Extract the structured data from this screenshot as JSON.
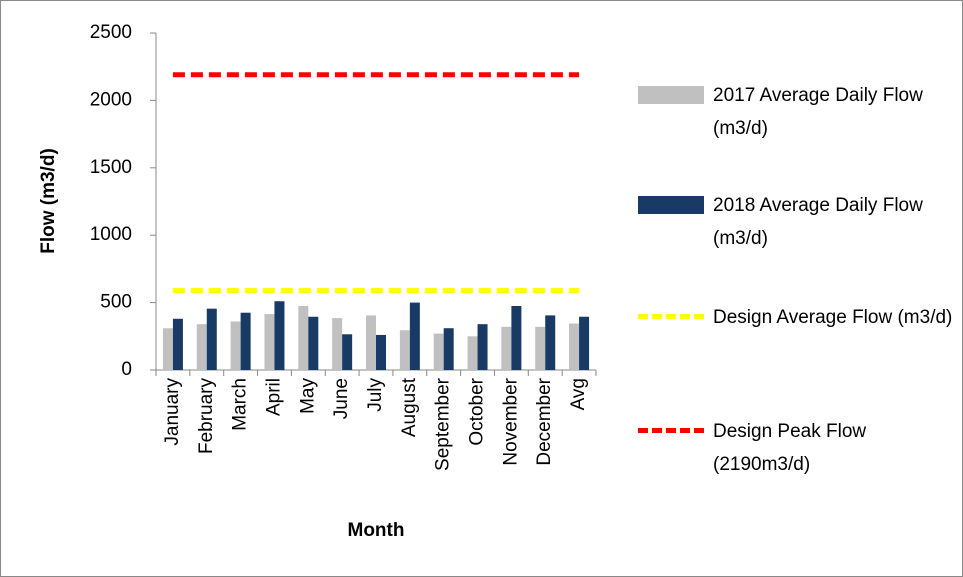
{
  "chart_data": {
    "type": "bar",
    "ylabel": "Flow (m3/d)",
    "xlabel": "Month",
    "categories": [
      "January",
      "February",
      "March",
      "April",
      "May",
      "June",
      "July",
      "August",
      "September",
      "October",
      "November",
      "December",
      "Avg"
    ],
    "series": [
      {
        "name": "2017 Average Daily Flow (m3/d)",
        "type": "bar",
        "color": "#c0c0c0",
        "values": [
          310,
          340,
          360,
          415,
          475,
          385,
          405,
          295,
          270,
          250,
          320,
          320,
          345
        ]
      },
      {
        "name": "2018 Average Daily Flow (m3/d)",
        "type": "bar",
        "color": "#1a3a66",
        "values": [
          380,
          455,
          425,
          510,
          395,
          265,
          260,
          500,
          310,
          340,
          475,
          405,
          395
        ]
      },
      {
        "name": "Design Average Flow (m3/d)",
        "type": "line",
        "dashed": true,
        "color": "#ffff00",
        "values": [
          590,
          590,
          590,
          590,
          590,
          590,
          590,
          590,
          590,
          590,
          590,
          590,
          590
        ]
      },
      {
        "name": "Design Peak Flow (2190m3/d)",
        "type": "line",
        "dashed": true,
        "color": "#ff0000",
        "values": [
          2190,
          2190,
          2190,
          2190,
          2190,
          2190,
          2190,
          2190,
          2190,
          2190,
          2190,
          2190,
          2190
        ]
      }
    ],
    "ylim": [
      0,
      2500
    ],
    "yticks": [
      0,
      500,
      1000,
      1500,
      2000,
      2500
    ],
    "grid": false,
    "legend": "right"
  }
}
